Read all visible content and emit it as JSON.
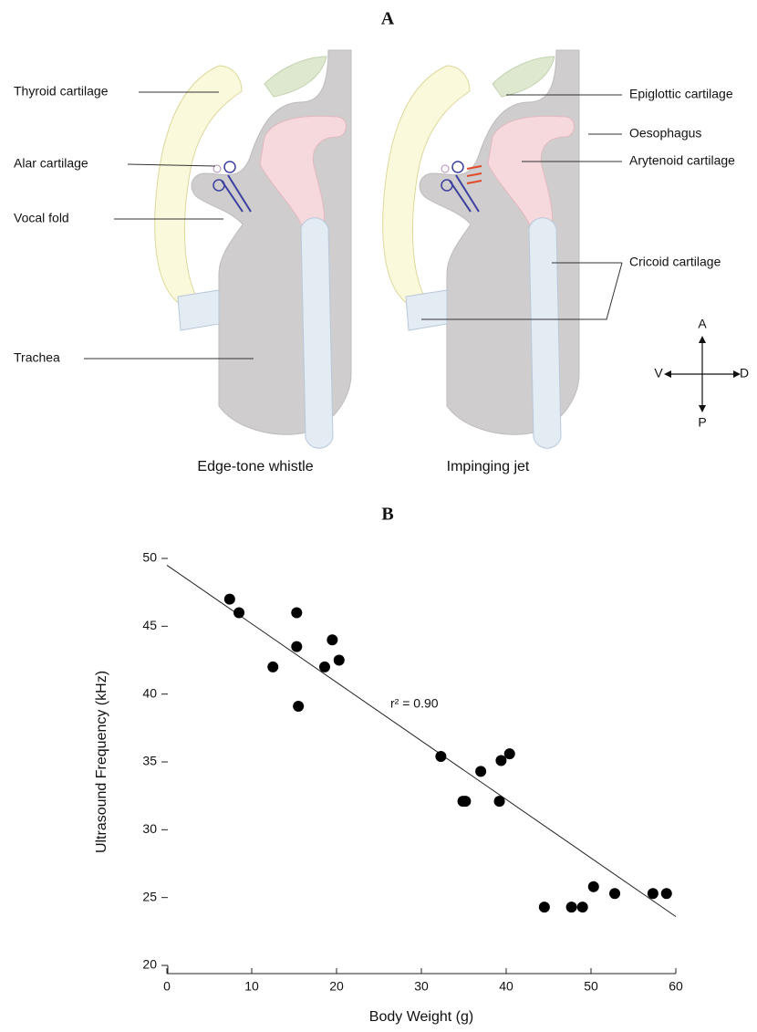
{
  "panel_a": {
    "label": "A",
    "labels": {
      "thyroid": "Thyroid cartilage",
      "alar": "Alar cartilage",
      "vocal_fold": "Vocal fold",
      "trachea": "Trachea",
      "epiglottic": "Epiglottic cartilage",
      "oesophagus": "Oesophagus",
      "arytenoid": "Arytenoid cartilage",
      "cricoid": "Cricoid cartilage"
    },
    "captions": [
      "Edge-tone whistle",
      "Impinging jet"
    ],
    "compass": {
      "up": "A",
      "left": "V",
      "right": "D",
      "down": "P"
    }
  },
  "chart_data": {
    "type": "scatter",
    "panel_label": "B",
    "x_label": "Body Weight (g)",
    "y_label": "Ultrasound Frequency (kHz)",
    "annotation": "r² = 0.90",
    "color": "#000000",
    "x": [
      7.4,
      8.5,
      15.3,
      15.3,
      12.5,
      19.5,
      18.6,
      20.3,
      15.5,
      32.3,
      37.0,
      34.9,
      35.2,
      39.4,
      40.4,
      39.2,
      44.5,
      47.7,
      49.0,
      50.3,
      52.8,
      57.3,
      58.9
    ],
    "values": [
      47.0,
      46.0,
      46.0,
      43.5,
      42.0,
      44.0,
      42.0,
      42.5,
      39.1,
      35.4,
      34.3,
      32.1,
      32.1,
      35.1,
      35.6,
      32.1,
      24.3,
      24.3,
      24.3,
      25.8,
      25.3,
      25.3,
      25.3
    ],
    "fit_line": {
      "x": [
        0,
        60
      ],
      "y": [
        49.5,
        23.6
      ]
    },
    "xlim": [
      0,
      60
    ],
    "ylim": [
      20,
      50
    ],
    "xticks": [
      0,
      10,
      20,
      30,
      40,
      50,
      60
    ],
    "yticks": [
      20,
      25,
      30,
      35,
      40,
      45,
      50
    ]
  }
}
